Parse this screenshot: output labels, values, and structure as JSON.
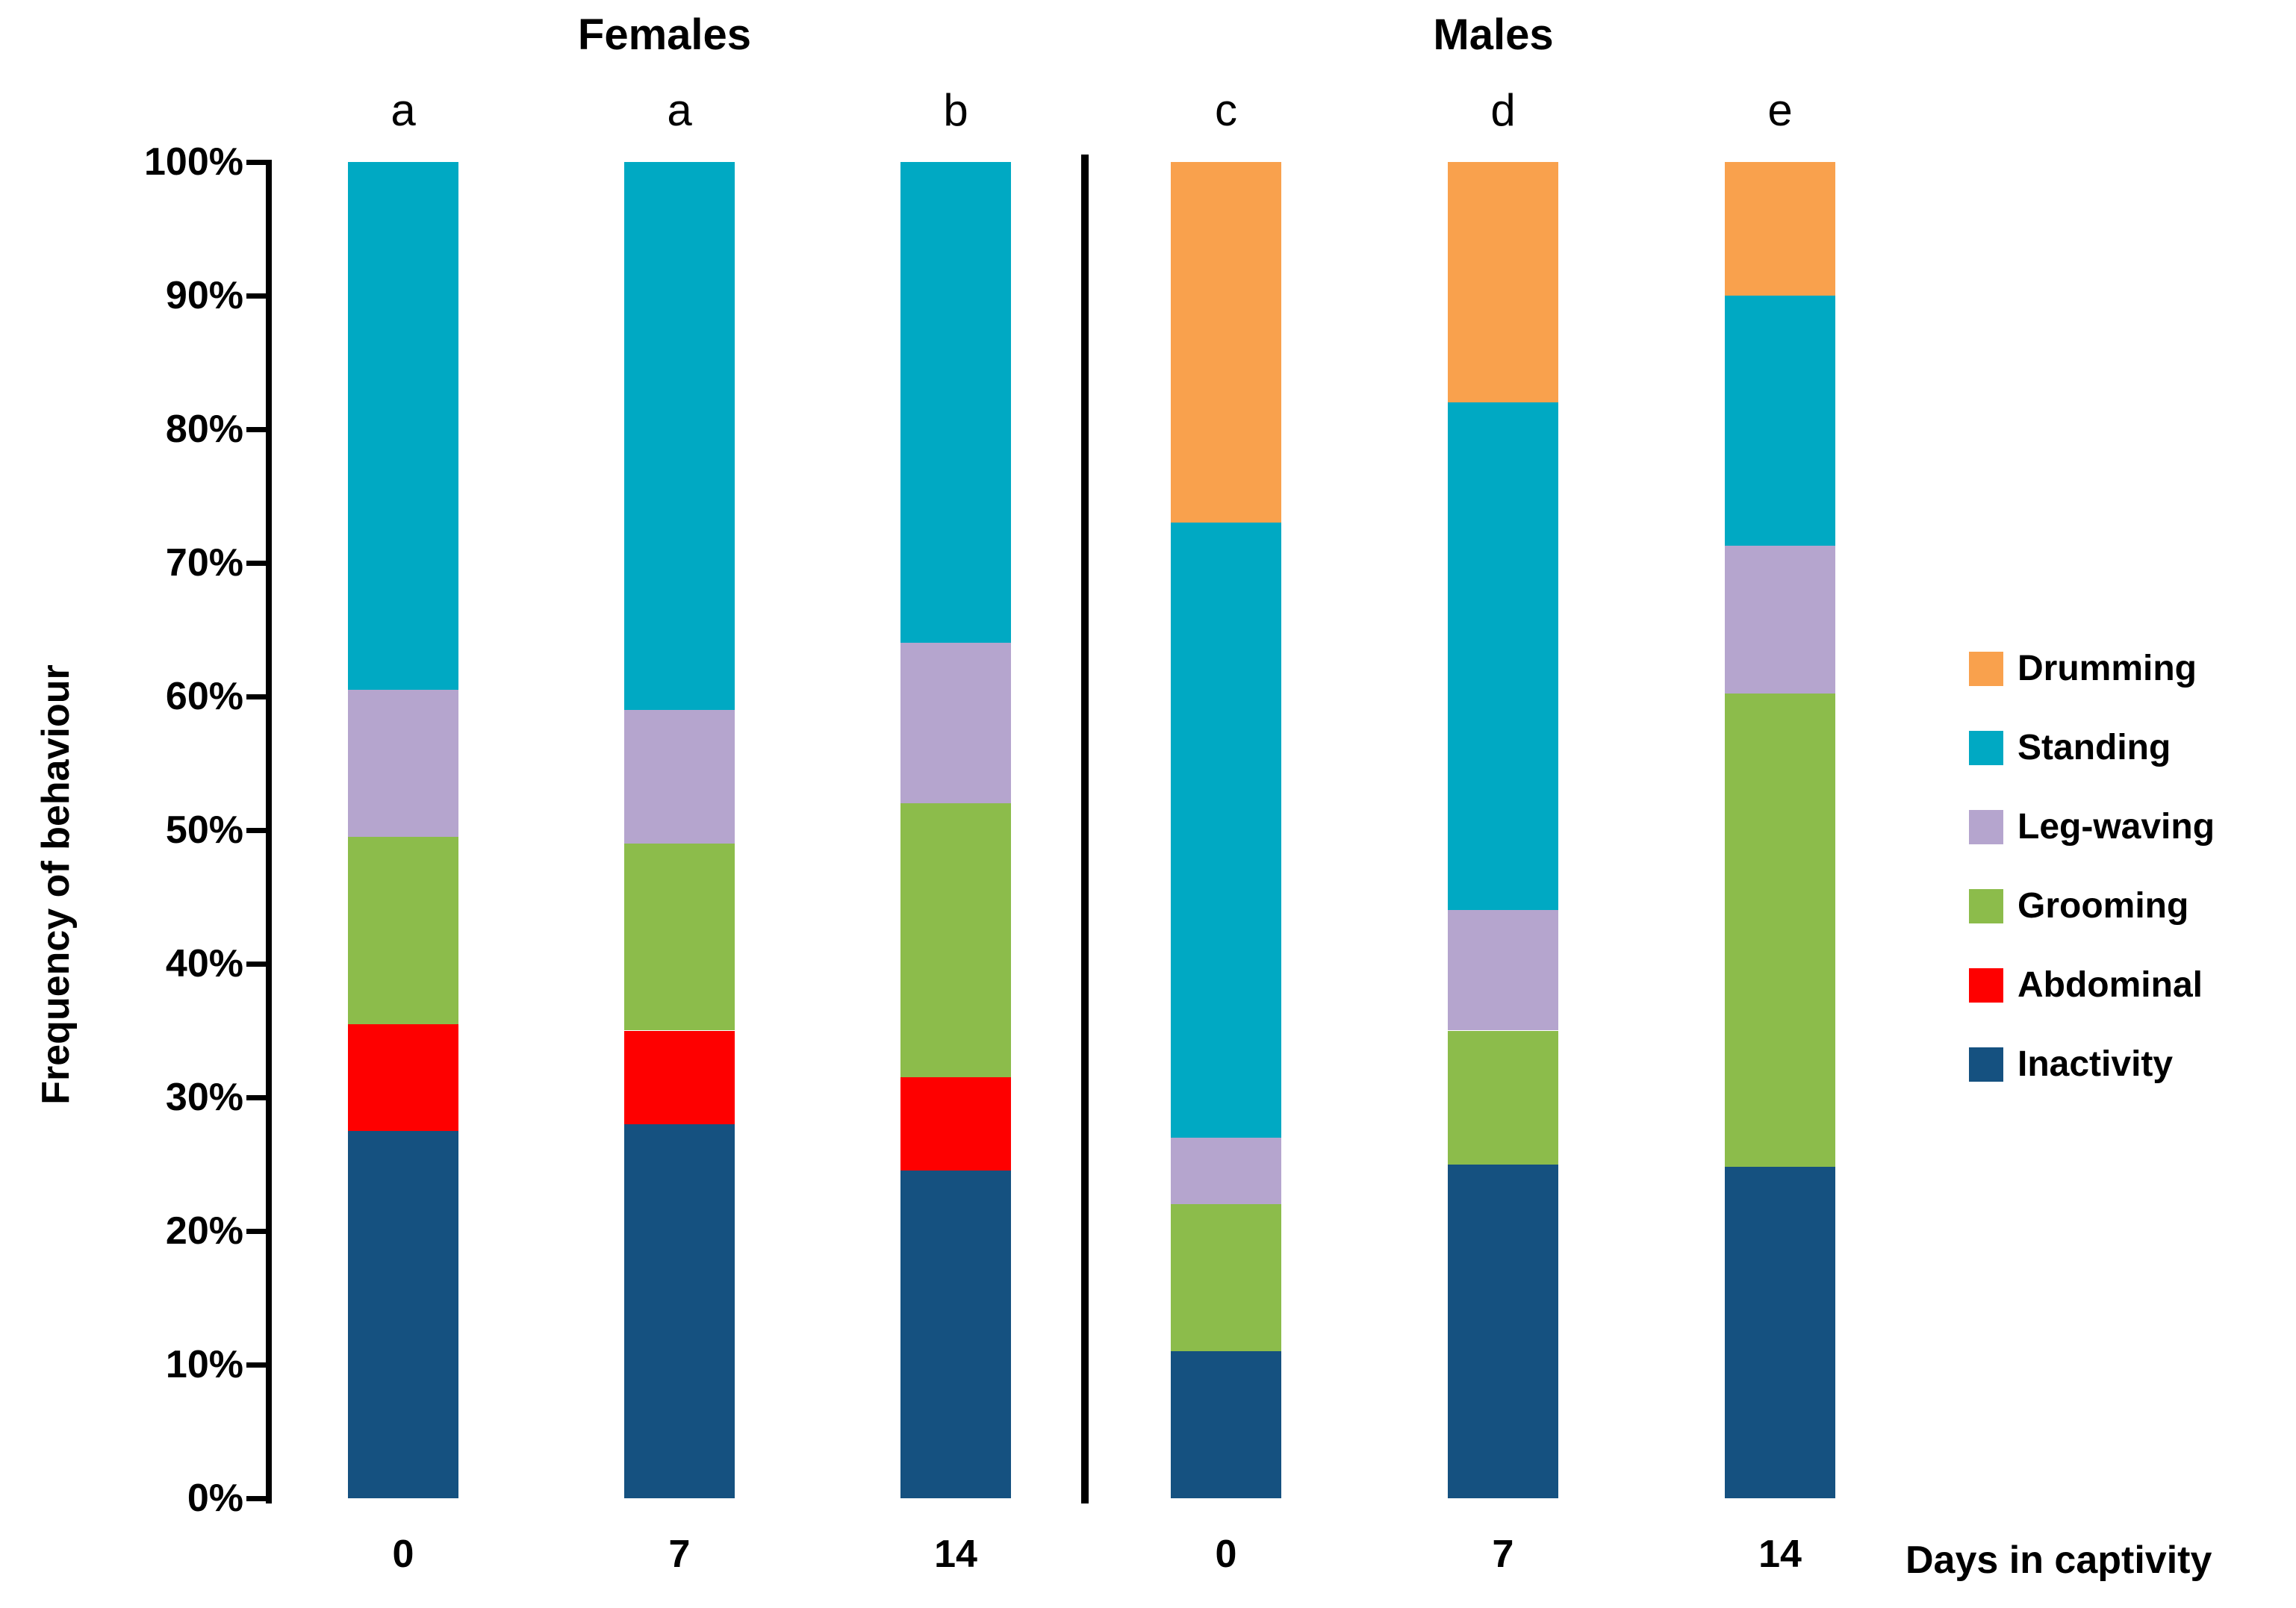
{
  "chart_data": {
    "type": "bar",
    "variant": "stacked-100-percent",
    "title_groups": [
      {
        "label": "Females"
      },
      {
        "label": "Males"
      }
    ],
    "ylabel": "Frequency of behaviour",
    "xlabel": "Days in captivity",
    "ylim": [
      0,
      100
    ],
    "grid": false,
    "legend_position": "right",
    "ytick_labels": [
      "0%",
      "10%",
      "20%",
      "30%",
      "40%",
      "50%",
      "60%",
      "70%",
      "80%",
      "90%",
      "100%"
    ],
    "series_order_bottom_to_top": [
      "Inactivity",
      "Abdominal",
      "Grooming",
      "Leg-waving",
      "Standing",
      "Drumming"
    ],
    "colors": {
      "Inactivity": "#155180",
      "Abdominal": "#FE0000",
      "Grooming": "#8CBC4B",
      "Leg-waving": "#B5A5CE",
      "Standing": "#00A9C3",
      "Drumming": "#F9A14D"
    },
    "bars": [
      {
        "group": "Females",
        "category": "0",
        "letter": "a",
        "values": {
          "Inactivity": 27.5,
          "Abdominal": 8,
          "Grooming": 14,
          "Leg-waving": 11,
          "Standing": 39.5,
          "Drumming": 0
        }
      },
      {
        "group": "Females",
        "category": "7",
        "letter": "a",
        "values": {
          "Inactivity": 28,
          "Abdominal": 7,
          "Grooming": 14,
          "Leg-waving": 10,
          "Standing": 41,
          "Drumming": 0
        }
      },
      {
        "group": "Females",
        "category": "14",
        "letter": "b",
        "values": {
          "Inactivity": 24.5,
          "Abdominal": 7,
          "Grooming": 20.5,
          "Leg-waving": 12,
          "Standing": 36,
          "Drumming": 0
        }
      },
      {
        "group": "Males",
        "category": "0",
        "letter": "c",
        "values": {
          "Inactivity": 11,
          "Abdominal": 0,
          "Grooming": 11,
          "Leg-waving": 5,
          "Standing": 46,
          "Drumming": 27
        }
      },
      {
        "group": "Males",
        "category": "7",
        "letter": "d",
        "values": {
          "Inactivity": 25,
          "Abdominal": 0,
          "Grooming": 10,
          "Leg-waving": 9,
          "Standing": 38,
          "Drumming": 18
        }
      },
      {
        "group": "Males",
        "category": "14",
        "letter": "e",
        "values": {
          "Inactivity": 24.8,
          "Abdominal": 0,
          "Grooming": 35.4,
          "Leg-waving": 11.1,
          "Standing": 18.7,
          "Drumming": 10
        }
      }
    ],
    "legend": [
      "Drumming",
      "Standing",
      "Leg-waving",
      "Grooming",
      "Abdominal",
      "Inactivity"
    ]
  }
}
